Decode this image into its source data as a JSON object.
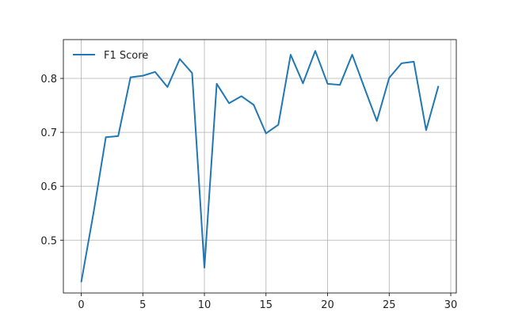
{
  "chart_data": {
    "type": "line",
    "title": "",
    "xlabel": "",
    "ylabel": "",
    "xlim": [
      -1.45,
      30.45
    ],
    "ylim": [
      0.402,
      0.872
    ],
    "grid": true,
    "legend_position": "top-left",
    "x_ticks": [
      0,
      5,
      10,
      15,
      20,
      25,
      30
    ],
    "x_tick_labels": [
      "0",
      "5",
      "10",
      "15",
      "20",
      "25",
      "30"
    ],
    "y_ticks": [
      0.5,
      0.6,
      0.7,
      0.8
    ],
    "y_tick_labels": [
      "0.5",
      "0.6",
      "0.7",
      "0.8"
    ],
    "series": [
      {
        "name": "F1 Score",
        "color": "#1f77b4",
        "x": [
          0,
          1,
          2,
          3,
          4,
          5,
          6,
          7,
          8,
          9,
          10,
          11,
          12,
          13,
          14,
          15,
          16,
          17,
          18,
          19,
          20,
          21,
          22,
          23,
          24,
          25,
          26,
          27,
          28,
          29
        ],
        "y": [
          0.422,
          0.551,
          0.691,
          0.693,
          0.802,
          0.805,
          0.812,
          0.784,
          0.836,
          0.81,
          0.449,
          0.79,
          0.754,
          0.767,
          0.751,
          0.698,
          0.714,
          0.844,
          0.791,
          0.851,
          0.79,
          0.788,
          0.844,
          0.782,
          0.721,
          0.801,
          0.828,
          0.831,
          0.704,
          0.786
        ]
      }
    ]
  }
}
